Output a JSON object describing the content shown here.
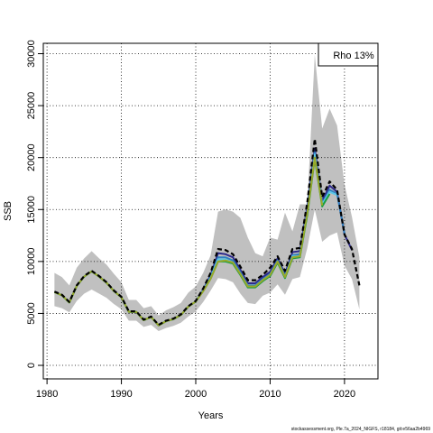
{
  "chart_data": {
    "type": "line",
    "xlabel": "Years",
    "ylabel": "SSB",
    "xlim": [
      1979.5,
      2024.5
    ],
    "ylim": [
      -1300,
      31000
    ],
    "x_ticks": [
      1980,
      1990,
      2000,
      2010,
      2020
    ],
    "y_ticks": [
      0,
      5000,
      10000,
      15000,
      20000,
      25000,
      30000
    ],
    "grid": true,
    "legend": {
      "text": "Rho 13%",
      "placement": "top-right"
    },
    "band": {
      "color": "#c0c0c0",
      "x": [
        1981,
        1982,
        1983,
        1984,
        1985,
        1986,
        1987,
        1988,
        1989,
        1990,
        1991,
        1992,
        1993,
        1994,
        1995,
        1996,
        1997,
        1998,
        1999,
        2000,
        2001,
        2002,
        2003,
        2004,
        2005,
        2006,
        2007,
        2008,
        2009,
        2010,
        2011,
        2012,
        2013,
        2014,
        2015,
        2016,
        2017,
        2018,
        2019,
        2020,
        2021,
        2022
      ],
      "lower": [
        5700,
        5500,
        5100,
        6200,
        6900,
        7300,
        6900,
        6500,
        5900,
        5400,
        4300,
        4300,
        3700,
        3900,
        3300,
        3600,
        3800,
        4100,
        4700,
        5200,
        6100,
        7200,
        8400,
        8300,
        8000,
        6900,
        6000,
        5900,
        6700,
        7000,
        7800,
        6800,
        8300,
        8500,
        11300,
        15000,
        11900,
        12500,
        12800,
        9600,
        8300,
        5400
      ],
      "upper": [
        8900,
        8500,
        7700,
        9400,
        10300,
        11000,
        10300,
        9700,
        8800,
        8000,
        6300,
        6300,
        5500,
        5700,
        4800,
        5300,
        5600,
        6000,
        7000,
        7600,
        8900,
        10600,
        14800,
        15000,
        14800,
        14200,
        12300,
        10800,
        10500,
        12300,
        12100,
        14700,
        12900,
        15500,
        15500,
        29900,
        22800,
        24700,
        23100,
        17400,
        14300,
        10400
      ]
    },
    "series": [
      {
        "color": "#000000",
        "dashed": true,
        "x": [
          1981,
          1982,
          1983,
          1984,
          1985,
          1986,
          1987,
          1988,
          1989,
          1990,
          1991,
          1992,
          1993,
          1994,
          1995,
          1996,
          1997,
          1998,
          1999,
          2000,
          2001,
          2002,
          2003,
          2004,
          2005,
          2006,
          2007,
          2008,
          2009,
          2010,
          2011,
          2012,
          2013,
          2014,
          2015,
          2016,
          2017,
          2018,
          2019,
          2020,
          2021,
          2022
        ],
        "y": [
          7100,
          6800,
          6100,
          7700,
          8600,
          9100,
          8600,
          8000,
          7200,
          6600,
          5200,
          5200,
          4400,
          4700,
          3900,
          4300,
          4500,
          4900,
          5700,
          6200,
          7400,
          8900,
          11200,
          11100,
          10700,
          9500,
          8200,
          8200,
          8700,
          9400,
          10500,
          9100,
          11200,
          11300,
          15700,
          21800,
          16200,
          17700,
          16900,
          12600,
          11200,
          7700
        ]
      },
      {
        "color": "#2e2a8c",
        "x": [
          1981,
          1982,
          1983,
          1984,
          1985,
          1986,
          1987,
          1988,
          1989,
          1990,
          1991,
          1992,
          1993,
          1994,
          1995,
          1996,
          1997,
          1998,
          1999,
          2000,
          2001,
          2002,
          2003,
          2004,
          2005,
          2006,
          2007,
          2008,
          2009,
          2010,
          2011,
          2012,
          2013,
          2014,
          2015,
          2016,
          2017,
          2018,
          2019,
          2020,
          2021
        ],
        "y": [
          7050,
          6750,
          6050,
          7650,
          8550,
          9050,
          8550,
          7950,
          7150,
          6550,
          5150,
          5150,
          4350,
          4650,
          3850,
          4250,
          4450,
          4850,
          5650,
          6150,
          7300,
          8700,
          10800,
          10700,
          10400,
          9200,
          7900,
          7900,
          8500,
          9000,
          10300,
          8800,
          10900,
          11000,
          15300,
          20900,
          15800,
          17300,
          16700,
          12600,
          11100
        ]
      },
      {
        "color": "#2f7fbf",
        "x": [
          1981,
          1982,
          1983,
          1984,
          1985,
          1986,
          1987,
          1988,
          1989,
          1990,
          1991,
          1992,
          1993,
          1994,
          1995,
          1996,
          1997,
          1998,
          1999,
          2000,
          2001,
          2002,
          2003,
          2004,
          2005,
          2006,
          2007,
          2008,
          2009,
          2010,
          2011,
          2012,
          2013,
          2014,
          2015,
          2016,
          2017,
          2018,
          2019,
          2020
        ],
        "y": [
          7050,
          6750,
          6050,
          7650,
          8550,
          9050,
          8550,
          7950,
          7150,
          6550,
          5150,
          5150,
          4350,
          4650,
          3850,
          4250,
          4450,
          4850,
          5650,
          6150,
          7250,
          8550,
          10400,
          10400,
          10100,
          8950,
          7700,
          7700,
          8300,
          8800,
          10100,
          8600,
          10600,
          10700,
          14900,
          20500,
          15600,
          16900,
          16500,
          12700
        ]
      },
      {
        "color": "#5ec8e8",
        "x": [
          1981,
          1982,
          1983,
          1984,
          1985,
          1986,
          1987,
          1988,
          1989,
          1990,
          1991,
          1992,
          1993,
          1994,
          1995,
          1996,
          1997,
          1998,
          1999,
          2000,
          2001,
          2002,
          2003,
          2004,
          2005,
          2006,
          2007,
          2008,
          2009,
          2010,
          2011,
          2012,
          2013,
          2014,
          2015,
          2016,
          2017,
          2018,
          2019
        ],
        "y": [
          7050,
          6750,
          6050,
          7650,
          8550,
          9050,
          8550,
          7950,
          7150,
          6550,
          5150,
          5150,
          4350,
          4650,
          3850,
          4250,
          4450,
          4850,
          5650,
          6150,
          7200,
          8450,
          10200,
          10200,
          9900,
          8800,
          7600,
          7600,
          8200,
          8700,
          10000,
          8500,
          10500,
          10500,
          14700,
          20300,
          15500,
          16700,
          16400
        ]
      },
      {
        "color": "#1a9e3f",
        "x": [
          1981,
          1982,
          1983,
          1984,
          1985,
          1986,
          1987,
          1988,
          1989,
          1990,
          1991,
          1992,
          1993,
          1994,
          1995,
          1996,
          1997,
          1998,
          1999,
          2000,
          2001,
          2002,
          2003,
          2004,
          2005,
          2006,
          2007,
          2008,
          2009,
          2010,
          2011,
          2012,
          2013,
          2014,
          2015,
          2016,
          2017,
          2018
        ],
        "y": [
          7050,
          6750,
          6050,
          7650,
          8550,
          9050,
          8550,
          7950,
          7150,
          6550,
          5150,
          5150,
          4350,
          4650,
          3850,
          4250,
          4450,
          4850,
          5650,
          6150,
          7150,
          8350,
          10000,
          10000,
          9800,
          8700,
          7500,
          7500,
          8100,
          8600,
          9900,
          8400,
          10300,
          10400,
          14500,
          19900,
          15300,
          16500
        ]
      },
      {
        "color": "#9aa82a",
        "x": [
          1981,
          1982,
          1983,
          1984,
          1985,
          1986,
          1987,
          1988,
          1989,
          1990,
          1991,
          1992,
          1993,
          1994,
          1995,
          1996,
          1997,
          1998,
          1999,
          2000,
          2001,
          2002,
          2003,
          2004,
          2005,
          2006,
          2007,
          2008,
          2009,
          2010,
          2011,
          2012,
          2013,
          2014,
          2015,
          2016,
          2017
        ],
        "y": [
          7050,
          6750,
          6050,
          7650,
          8550,
          9050,
          8550,
          7950,
          7150,
          6550,
          5150,
          5150,
          4350,
          4650,
          3850,
          4250,
          4450,
          4850,
          5650,
          6150,
          7150,
          8350,
          10000,
          10100,
          9900,
          8800,
          7600,
          7600,
          8200,
          8700,
          10000,
          8500,
          10400,
          10500,
          14700,
          20000,
          15400
        ]
      }
    ],
    "footer": "stockassessment.org, Ple.7a_2024_NIGFS, r18184, git:e56aa2b4969"
  }
}
